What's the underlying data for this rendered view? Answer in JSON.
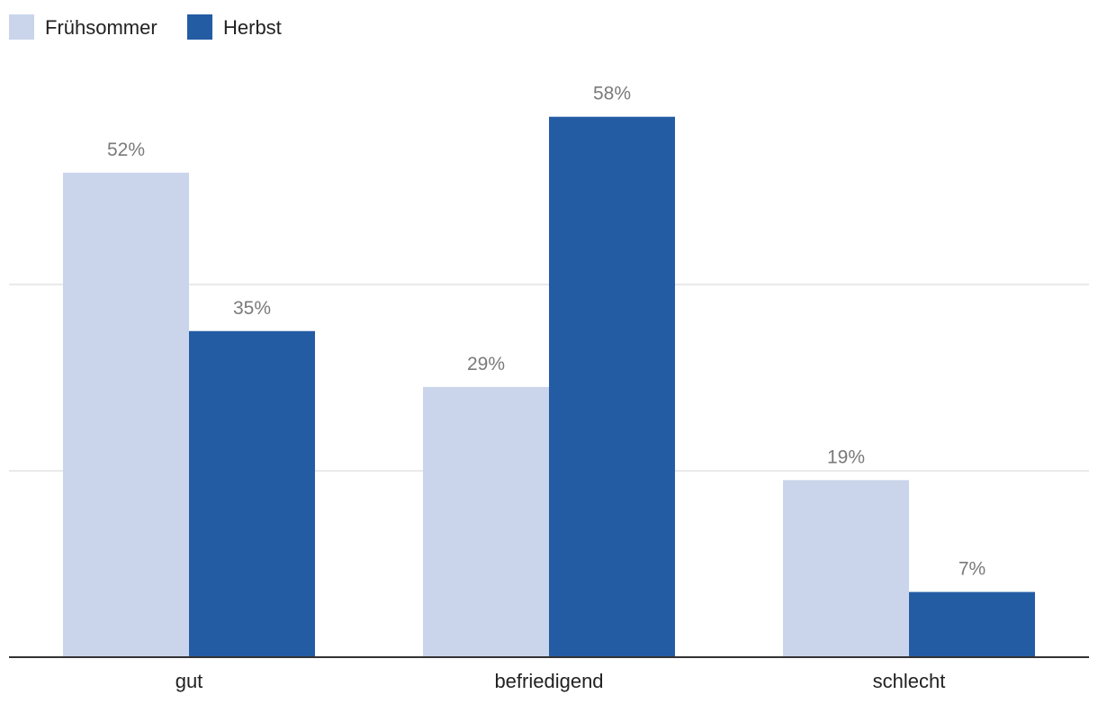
{
  "chart_data": {
    "type": "bar",
    "categories": [
      "gut",
      "befriedigend",
      "schlecht"
    ],
    "series": [
      {
        "name": "Frühsommer",
        "color": "#cad5ec",
        "values": [
          52,
          29,
          19
        ]
      },
      {
        "name": "Herbst",
        "color": "#245ca4",
        "values": [
          35,
          58,
          7
        ]
      }
    ],
    "value_suffix": "%",
    "ylim": [
      0,
      60
    ],
    "gridlines": [
      20,
      40
    ],
    "legend_position": "top-left",
    "grid": true
  }
}
